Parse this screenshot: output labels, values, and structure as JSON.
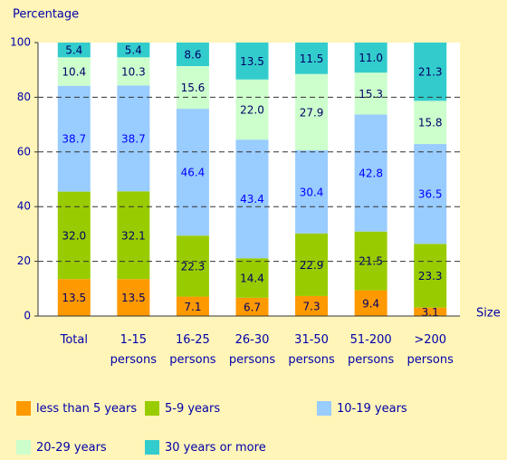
{
  "chart_data": {
    "type": "stacked_bar",
    "y_label": "Percentage",
    "x_label": "Size",
    "categories": [
      "Total",
      "1-15 persons",
      "16-25 persons",
      "26-30 persons",
      "31-50 persons",
      "51-200 persons",
      ">200 persons"
    ],
    "series": [
      {
        "name": "less than 5 years",
        "color": "#ff9900",
        "values": [
          13.5,
          13.5,
          7.1,
          6.7,
          7.3,
          9.4,
          3.1
        ],
        "value_labels": [
          "13.5",
          "13.5",
          "7.1",
          "6.7",
          "7.3",
          "9.4",
          "3.1"
        ]
      },
      {
        "name": "5-9 years",
        "color": "#99cc00",
        "values": [
          32,
          32.1,
          22.3,
          14.4,
          22.9,
          21.5,
          23.3
        ],
        "value_labels": [
          "32.0",
          "32.1",
          "22.3",
          "14.4",
          "22.9",
          "21.5",
          "23.3"
        ]
      },
      {
        "name": "10-19 years",
        "color": "#99ccff",
        "values": [
          38.7,
          38.7,
          46.4,
          43.4,
          30.4,
          42.8,
          36.5
        ],
        "value_labels": [
          "38.7",
          "38.7",
          "46.4",
          "43.4",
          "30.4",
          "42.8",
          "36.5"
        ]
      },
      {
        "name": "20-29 years",
        "color": "#ccffcc",
        "values": [
          10.4,
          10.3,
          15.6,
          22,
          27.9,
          15.3,
          15.8
        ],
        "value_labels": [
          "10.4",
          "10.3",
          "15.6",
          "22.0",
          "27.9",
          "15.3",
          "15.8"
        ]
      },
      {
        "name": "30 years or more",
        "color": "#33cccc",
        "values": [
          5.4,
          5.4,
          8.6,
          13.5,
          11.5,
          11,
          21.3
        ],
        "value_labels": [
          "5.4",
          "5.4",
          "8.6",
          "13.5",
          "11.5",
          "11.0",
          "21.3"
        ]
      }
    ],
    "ylim": [
      0,
      100
    ],
    "yticks": [
      0,
      20,
      40,
      60,
      80,
      100
    ],
    "grid": true
  }
}
